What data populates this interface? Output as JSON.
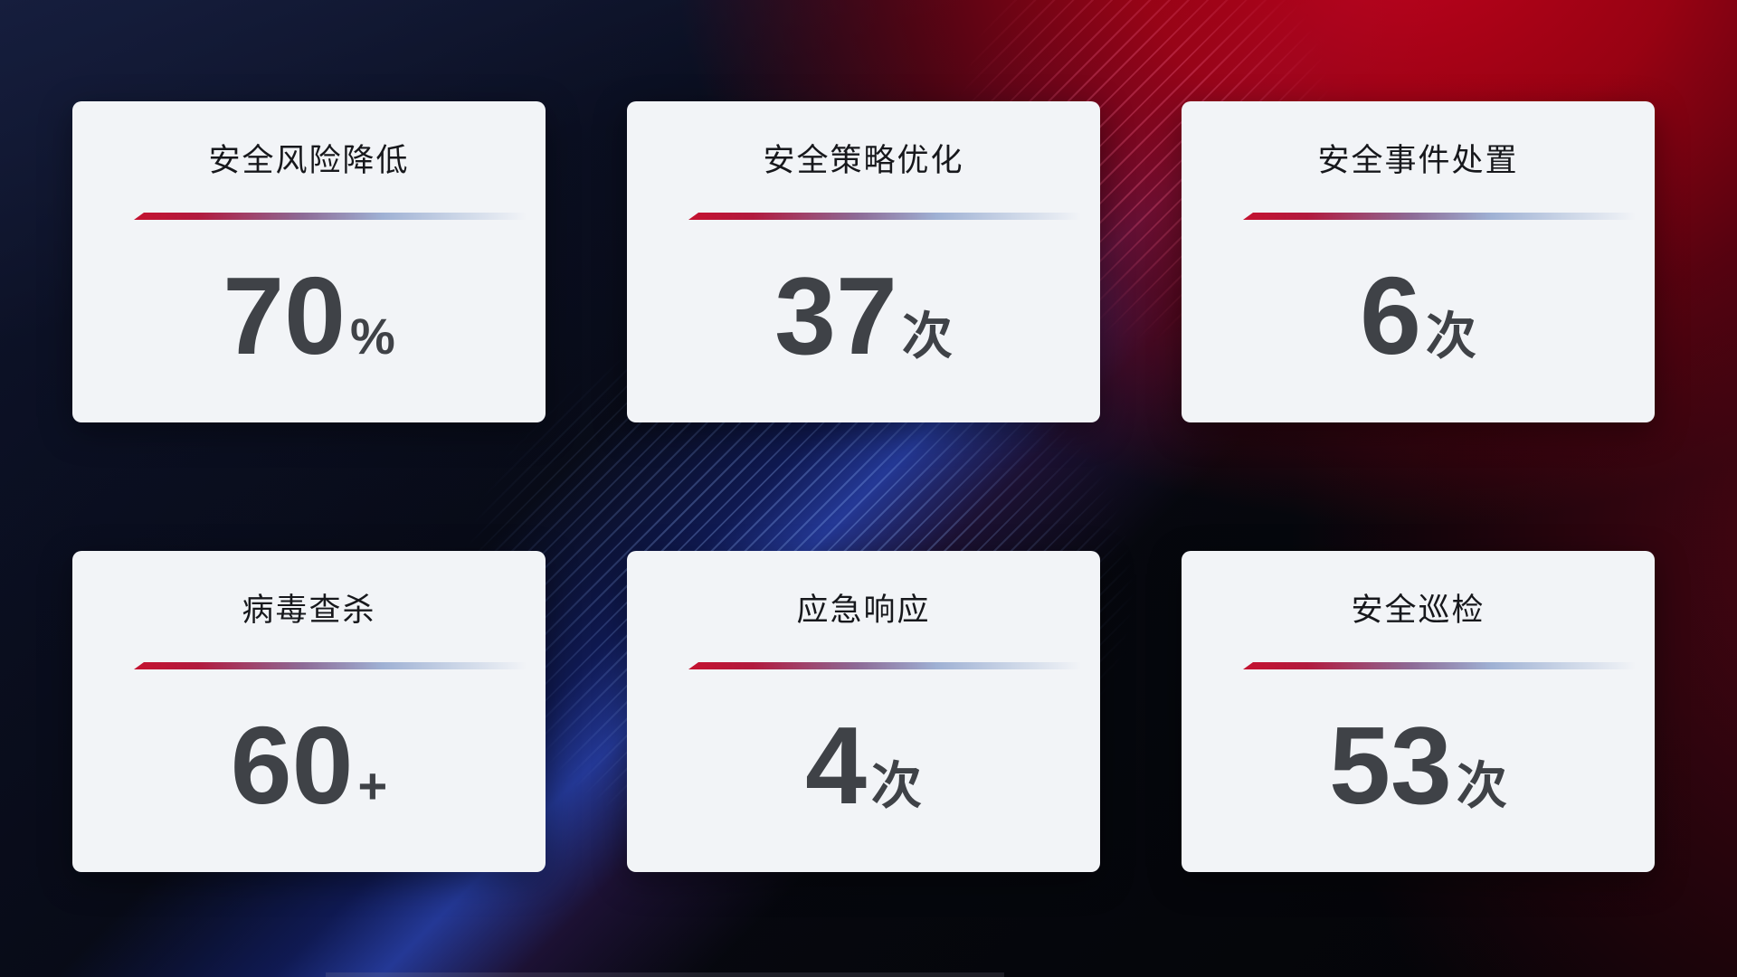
{
  "theme": {
    "card_bg": "#f2f4f7",
    "title_color": "#17181c",
    "value_color": "#3f4247",
    "accent_red": "#c41230",
    "accent_blue": "#2a3fa8",
    "bar_gradient_mid": "#8d6a96",
    "bar_gradient_light": "#9fb1d4"
  },
  "stats": [
    {
      "title": "安全风险降低",
      "value": "70",
      "unit": "%"
    },
    {
      "title": "安全策略优化",
      "value": "37",
      "unit": "次"
    },
    {
      "title": "安全事件处置",
      "value": "6",
      "unit": "次"
    },
    {
      "title": "病毒查杀",
      "value": "60",
      "unit": "+"
    },
    {
      "title": "应急响应",
      "value": "4",
      "unit": "次"
    },
    {
      "title": "安全巡检",
      "value": "53",
      "unit": "次"
    }
  ]
}
